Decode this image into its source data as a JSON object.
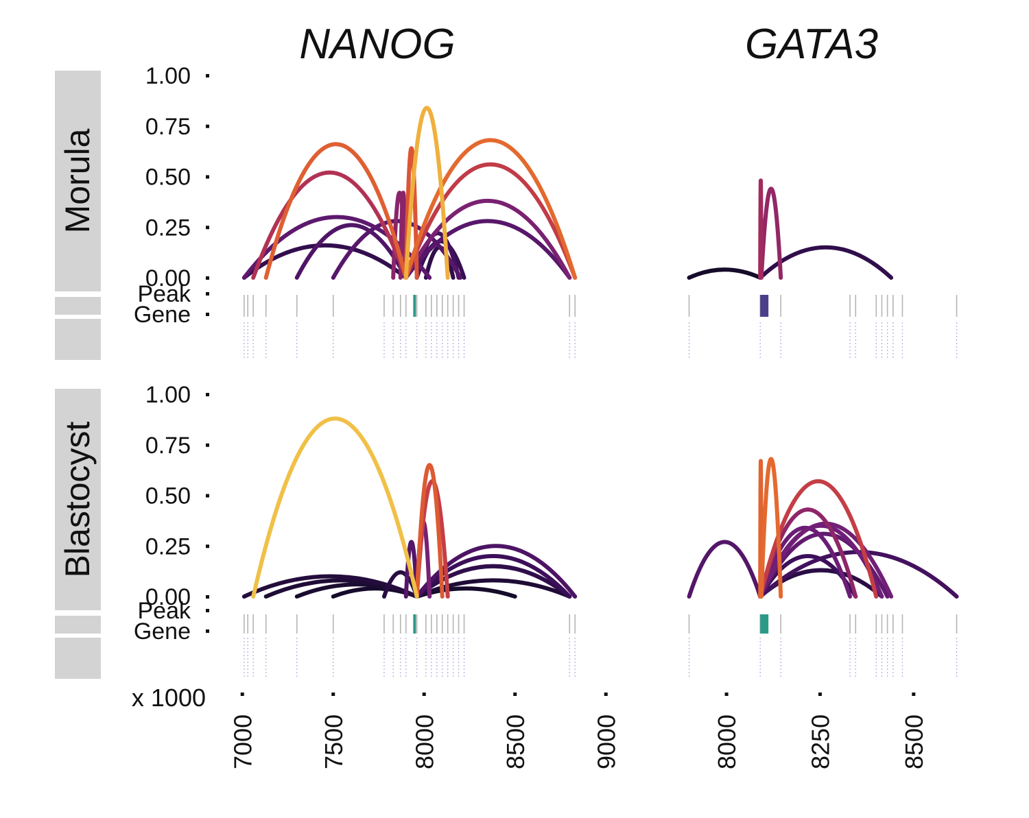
{
  "chart_data": {
    "type": "arc",
    "x_multiplier_label": "x 1000",
    "y_ticks": [
      "1.00",
      "0.75",
      "0.50",
      "0.25",
      "0.00"
    ],
    "track_labels": [
      "Peak",
      "Gene"
    ],
    "columns": [
      {
        "title": "NANOG",
        "xlim": [
          6950,
          8950
        ],
        "x_ticks": [
          7000,
          7500,
          8000,
          8500,
          9000
        ],
        "x_tick_labels": [
          "7000",
          "7500",
          "8000",
          "8500",
          "9000"
        ],
        "peaks": [
          7010,
          7030,
          7060,
          7130,
          7300,
          7500,
          7780,
          7830,
          7870,
          7900,
          7960,
          8010,
          8040,
          8070,
          8100,
          8130,
          8160,
          8190,
          8220,
          8800,
          8830
        ],
        "gene_span": [
          7940,
          7955
        ]
      },
      {
        "title": "GATA3",
        "xlim": [
          7800,
          8680
        ],
        "x_ticks": [
          8000,
          8250,
          8500
        ],
        "x_tick_labels": [
          "8000",
          "8250",
          "8500"
        ],
        "peaks": [
          7900,
          8090,
          8145,
          8330,
          8345,
          8400,
          8415,
          8430,
          8445,
          8470,
          8615
        ],
        "gene_span": [
          8090,
          8112
        ]
      }
    ],
    "rows": [
      {
        "label": "Morula",
        "panels": [
          {
            "arcs": [
              {
                "from": 7010,
                "to": 7900,
                "y": 0.16
              },
              {
                "from": 7010,
                "to": 8030,
                "y": 0.3
              },
              {
                "from": 7500,
                "to": 8200,
                "y": 0.28
              },
              {
                "from": 7300,
                "to": 7900,
                "y": 0.26
              },
              {
                "from": 7060,
                "to": 7900,
                "y": 0.52
              },
              {
                "from": 7130,
                "to": 7900,
                "y": 0.66
              },
              {
                "from": 7830,
                "to": 7900,
                "y": 0.42
              },
              {
                "from": 7870,
                "to": 7900,
                "y": 0.42
              },
              {
                "from": 7900,
                "to": 7960,
                "y": 0.64
              },
              {
                "from": 7900,
                "to": 8130,
                "y": 0.84
              },
              {
                "from": 7900,
                "to": 8830,
                "y": 0.68
              },
              {
                "from": 7900,
                "to": 8830,
                "y": 0.56
              },
              {
                "from": 7900,
                "to": 8800,
                "y": 0.38
              },
              {
                "from": 7900,
                "to": 8800,
                "y": 0.28
              },
              {
                "from": 7960,
                "to": 8190,
                "y": 0.22
              },
              {
                "from": 7960,
                "to": 8220,
                "y": 0.18
              },
              {
                "from": 8010,
                "to": 8160,
                "y": 0.15
              }
            ]
          },
          {
            "arcs": [
              {
                "from": 7900,
                "to": 8090,
                "y": 0.04
              },
              {
                "from": 8090,
                "to": 8440,
                "y": 0.15
              },
              {
                "from": 8090,
                "to": 8093,
                "y": 0.48
              },
              {
                "from": 8093,
                "to": 8145,
                "y": 0.44
              }
            ]
          }
        ]
      },
      {
        "label": "Blastocyst",
        "panels": [
          {
            "arcs": [
              {
                "from": 7060,
                "to": 7960,
                "y": 0.88
              },
              {
                "from": 7960,
                "to": 8030,
                "y": 0.37
              },
              {
                "from": 7960,
                "to": 8100,
                "y": 0.65
              },
              {
                "from": 7960,
                "to": 8130,
                "y": 0.57
              },
              {
                "from": 7960,
                "to": 8830,
                "y": 0.25
              },
              {
                "from": 7960,
                "to": 8800,
                "y": 0.2
              },
              {
                "from": 7960,
                "to": 8800,
                "y": 0.15
              },
              {
                "from": 7900,
                "to": 7960,
                "y": 0.27
              },
              {
                "from": 7780,
                "to": 7960,
                "y": 0.12
              },
              {
                "from": 7010,
                "to": 7960,
                "y": 0.1
              },
              {
                "from": 7130,
                "to": 7960,
                "y": 0.08
              },
              {
                "from": 7300,
                "to": 7960,
                "y": 0.06
              },
              {
                "from": 7500,
                "to": 7960,
                "y": 0.04
              },
              {
                "from": 7960,
                "to": 8800,
                "y": 0.08
              },
              {
                "from": 7960,
                "to": 8500,
                "y": 0.04
              }
            ]
          },
          {
            "arcs": [
              {
                "from": 7900,
                "to": 8090,
                "y": 0.27
              },
              {
                "from": 8090,
                "to": 8093,
                "y": 0.67
              },
              {
                "from": 8093,
                "to": 8145,
                "y": 0.68
              },
              {
                "from": 8090,
                "to": 8400,
                "y": 0.57
              },
              {
                "from": 8090,
                "to": 8345,
                "y": 0.43
              },
              {
                "from": 8090,
                "to": 8440,
                "y": 0.36
              },
              {
                "from": 8090,
                "to": 8415,
                "y": 0.35
              },
              {
                "from": 8090,
                "to": 8330,
                "y": 0.34
              },
              {
                "from": 8090,
                "to": 8430,
                "y": 0.31
              },
              {
                "from": 8090,
                "to": 8615,
                "y": 0.22
              },
              {
                "from": 8090,
                "to": 8345,
                "y": 0.2
              },
              {
                "from": 8090,
                "to": 8415,
                "y": 0.13
              }
            ]
          }
        ]
      }
    ]
  }
}
